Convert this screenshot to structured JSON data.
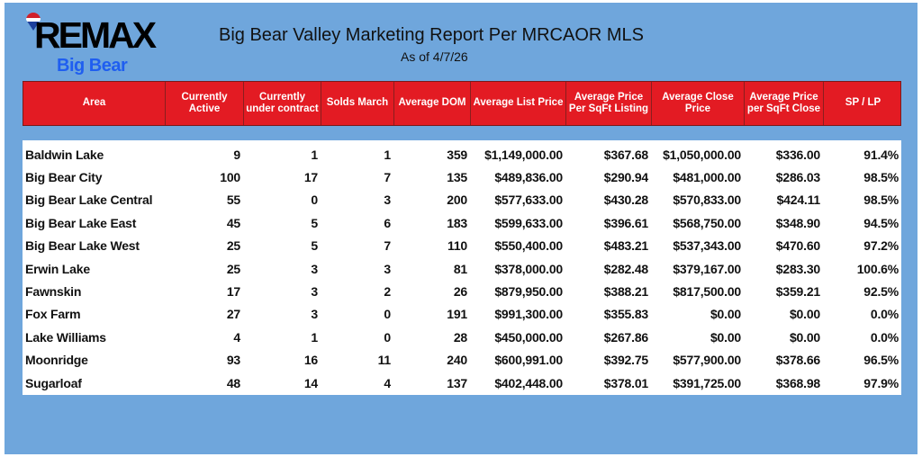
{
  "logo": {
    "brand": "RE/MAX",
    "office": "Big Bear"
  },
  "title": "Big Bear Valley Marketing Report Per MRCAOR MLS",
  "subtitle": "As of 4/7/26",
  "colors": {
    "header_red": "#e31b23",
    "background": "#6fa6dc",
    "office_blue": "#1f5ef0"
  },
  "columns": [
    "Area",
    "Currently Active",
    "Currently under contract",
    "Solds March",
    "Average DOM",
    "Average List Price",
    "Average Price Per SqFt Listing",
    "Average Close Price",
    "Average Price per SqFt Close",
    "SP / LP"
  ],
  "rows": [
    [
      "Baldwin Lake",
      "9",
      "1",
      "1",
      "359",
      "$1,149,000.00",
      "$367.68",
      "$1,050,000.00",
      "$336.00",
      "91.4%"
    ],
    [
      "Big Bear City",
      "100",
      "17",
      "7",
      "135",
      "$489,836.00",
      "$290.94",
      "$481,000.00",
      "$286.03",
      "98.5%"
    ],
    [
      "Big Bear Lake Central",
      "55",
      "0",
      "3",
      "200",
      "$577,633.00",
      "$430.28",
      "$570,833.00",
      "$424.11",
      "98.5%"
    ],
    [
      "Big Bear Lake East",
      "45",
      "5",
      "6",
      "183",
      "$599,633.00",
      "$396.61",
      "$568,750.00",
      "$348.90",
      "94.5%"
    ],
    [
      "Big Bear Lake West",
      "25",
      "5",
      "7",
      "110",
      "$550,400.00",
      "$483.21",
      "$537,343.00",
      "$470.60",
      "97.2%"
    ],
    [
      "Erwin Lake",
      "25",
      "3",
      "3",
      "81",
      "$378,000.00",
      "$282.48",
      "$379,167.00",
      "$283.30",
      "100.6%"
    ],
    [
      "Fawnskin",
      "17",
      "3",
      "2",
      "26",
      "$879,950.00",
      "$388.21",
      "$817,500.00",
      "$359.21",
      "92.5%"
    ],
    [
      "Fox Farm",
      "27",
      "3",
      "0",
      "191",
      "$991,300.00",
      "$355.83",
      "$0.00",
      "$0.00",
      "0.0%"
    ],
    [
      "Lake Williams",
      "4",
      "1",
      "0",
      "28",
      "$450,000.00",
      "$267.86",
      "$0.00",
      "$0.00",
      "0.0%"
    ],
    [
      "Moonridge",
      "93",
      "16",
      "11",
      "240",
      "$600,991.00",
      "$392.75",
      "$577,900.00",
      "$378.66",
      "96.5%"
    ],
    [
      "Sugarloaf",
      "48",
      "14",
      "4",
      "137",
      "$402,448.00",
      "$378.01",
      "$391,725.00",
      "$368.98",
      "97.9%"
    ]
  ]
}
